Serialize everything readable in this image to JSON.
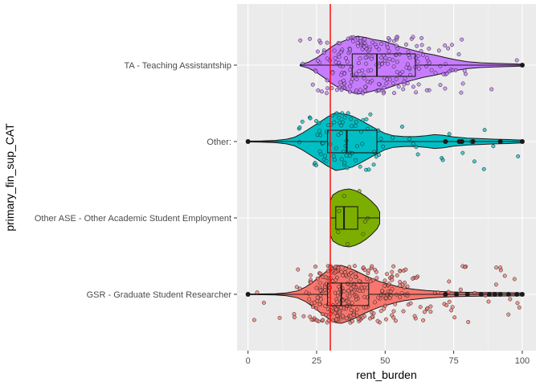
{
  "chart_data": {
    "type": "violin",
    "title": "",
    "xlabel": "rent_burden",
    "ylabel": "primary_fin_sup_CAT",
    "xlim": [
      -4,
      105
    ],
    "xticks": [
      0,
      25,
      50,
      75,
      100
    ],
    "grid": true,
    "legend": "none",
    "reference_line": {
      "x": 30,
      "color": "#FF0000"
    },
    "categories": [
      "TA - Teaching Assistantship",
      "Other:",
      "Other ASE - Other Academic Student Employment",
      "GSR - Graduate Student Researcher"
    ],
    "series": [
      {
        "category": "TA - Teaching Assistantship",
        "color": "#C77CFF",
        "min": 19,
        "q1": 38,
        "median": 47,
        "q3": 61,
        "max": 100,
        "outliers": [
          100
        ],
        "density": [
          [
            19,
            0.02
          ],
          [
            22,
            0.1
          ],
          [
            25,
            0.25
          ],
          [
            28,
            0.45
          ],
          [
            30,
            0.6
          ],
          [
            32,
            0.72
          ],
          [
            35,
            0.84
          ],
          [
            38,
            0.95
          ],
          [
            40,
            1.0
          ],
          [
            43,
            0.95
          ],
          [
            46,
            0.88
          ],
          [
            50,
            0.82
          ],
          [
            53,
            0.72
          ],
          [
            56,
            0.62
          ],
          [
            60,
            0.52
          ],
          [
            64,
            0.42
          ],
          [
            68,
            0.35
          ],
          [
            72,
            0.26
          ],
          [
            76,
            0.18
          ],
          [
            80,
            0.12
          ],
          [
            85,
            0.08
          ],
          [
            90,
            0.06
          ],
          [
            95,
            0.05
          ],
          [
            100,
            0.03
          ]
        ],
        "points_n": 230
      },
      {
        "category": "Other:",
        "color": "#00BFC4",
        "min": 0,
        "q1": 29,
        "median": 36,
        "q3": 47,
        "max": 100,
        "outliers": [
          0,
          72,
          77,
          78,
          82,
          92,
          100
        ],
        "density": [
          [
            0,
            0.015
          ],
          [
            5,
            0.02
          ],
          [
            10,
            0.04
          ],
          [
            14,
            0.08
          ],
          [
            17,
            0.15
          ],
          [
            20,
            0.3
          ],
          [
            23,
            0.48
          ],
          [
            26,
            0.66
          ],
          [
            29,
            0.85
          ],
          [
            32,
            1.0
          ],
          [
            35,
            0.95
          ],
          [
            38,
            0.88
          ],
          [
            41,
            0.74
          ],
          [
            44,
            0.58
          ],
          [
            47,
            0.42
          ],
          [
            50,
            0.28
          ],
          [
            53,
            0.2
          ],
          [
            57,
            0.17
          ],
          [
            61,
            0.17
          ],
          [
            65,
            0.2
          ],
          [
            68,
            0.24
          ],
          [
            71,
            0.22
          ],
          [
            75,
            0.16
          ],
          [
            80,
            0.12
          ],
          [
            85,
            0.1
          ],
          [
            90,
            0.08
          ],
          [
            95,
            0.07
          ],
          [
            100,
            0.05
          ]
        ],
        "points_n": 90
      },
      {
        "category": "Other ASE - Other Academic Student Employment",
        "color": "#7CAE00",
        "min": 30,
        "q1": 32,
        "median": 35,
        "q3": 40,
        "max": 48,
        "outliers": [],
        "density": [
          [
            30,
            0.6
          ],
          [
            31,
            0.8
          ],
          [
            33,
            0.92
          ],
          [
            35,
            0.98
          ],
          [
            37,
            1.0
          ],
          [
            39,
            0.95
          ],
          [
            41,
            0.86
          ],
          [
            43,
            0.74
          ],
          [
            45,
            0.58
          ],
          [
            47,
            0.38
          ],
          [
            48,
            0.2
          ]
        ],
        "points_n": 8
      },
      {
        "category": "GSR - Graduate Student Researcher",
        "color": "#F8766D",
        "min": 0,
        "q1": 29,
        "median": 34,
        "q3": 44,
        "max": 100,
        "outliers": [
          0,
          72,
          76,
          80,
          85,
          88,
          90,
          92,
          95,
          98,
          100
        ],
        "density": [
          [
            0,
            0.01
          ],
          [
            5,
            0.015
          ],
          [
            10,
            0.02
          ],
          [
            14,
            0.05
          ],
          [
            18,
            0.12
          ],
          [
            21,
            0.25
          ],
          [
            24,
            0.45
          ],
          [
            27,
            0.68
          ],
          [
            30,
            0.88
          ],
          [
            32,
            0.98
          ],
          [
            34,
            1.0
          ],
          [
            36,
            0.94
          ],
          [
            39,
            0.82
          ],
          [
            42,
            0.68
          ],
          [
            45,
            0.55
          ],
          [
            48,
            0.44
          ],
          [
            51,
            0.36
          ],
          [
            54,
            0.28
          ],
          [
            57,
            0.22
          ],
          [
            61,
            0.17
          ],
          [
            65,
            0.13
          ],
          [
            70,
            0.1
          ],
          [
            75,
            0.08
          ],
          [
            80,
            0.07
          ],
          [
            85,
            0.06
          ],
          [
            90,
            0.06
          ],
          [
            95,
            0.055
          ],
          [
            100,
            0.05
          ]
        ],
        "points_n": 330
      }
    ]
  }
}
